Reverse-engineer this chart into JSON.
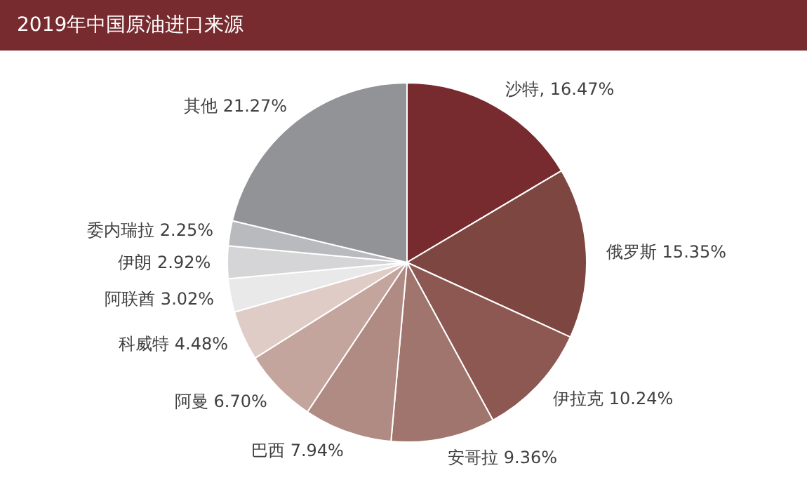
{
  "chart_data": {
    "type": "pie",
    "title": "2019年中国原油进口来源",
    "categories": [
      "沙特",
      "俄罗斯",
      "伊拉克",
      "安哥拉",
      "巴西",
      "阿曼",
      "科威特",
      "阿联酋",
      "伊朗",
      "委内瑞拉",
      "其他"
    ],
    "values": [
      16.47,
      15.35,
      10.24,
      9.36,
      7.94,
      6.7,
      4.48,
      3.02,
      2.92,
      2.25,
      21.27
    ],
    "value_labels": [
      ", 16.47%",
      "15.35%",
      "10.24%",
      "9.36%",
      "7.94%",
      "6.70%",
      "4.48%",
      "3.02%",
      "2.92%",
      "2.25%",
      "21.27%"
    ],
    "colors": [
      "#772b2f",
      "#7e4640",
      "#8d5752",
      "#a0756d",
      "#b08b83",
      "#c4a59e",
      "#e0ccc6",
      "#e9e9ea",
      "#d5d5d7",
      "#b9babd",
      "#929396"
    ]
  }
}
